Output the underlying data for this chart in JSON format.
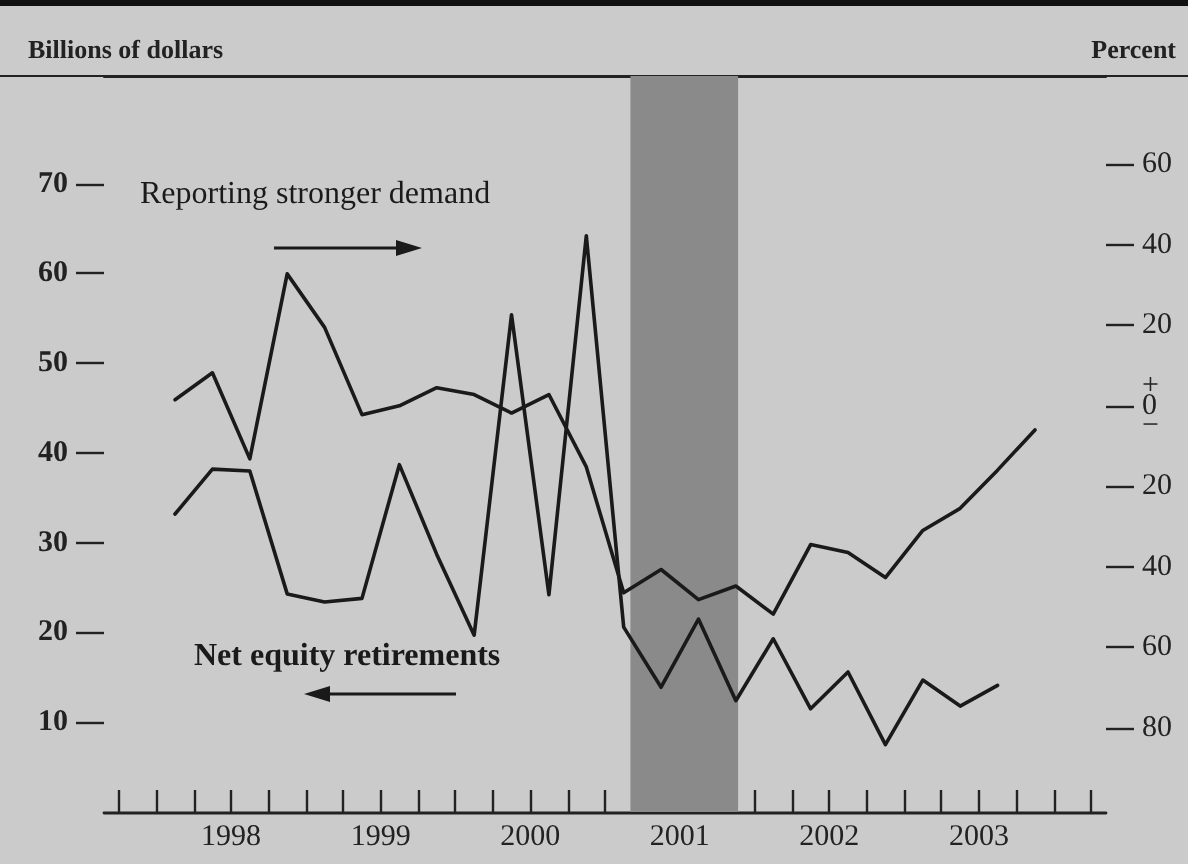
{
  "chart_data": {
    "type": "line",
    "ylabel": "Billions of dollars",
    "y2label": "Percent",
    "annotations": [
      "Net equity retirements",
      "Reporting stronger demand"
    ],
    "x": [
      1998.125,
      1998.375,
      1998.625,
      1998.875,
      1999.125,
      1999.375,
      1999.625,
      1999.875,
      2000.125,
      2000.375,
      2000.625,
      2000.875,
      2001.125,
      2001.375,
      2001.625,
      2001.875,
      2002.125,
      2002.375,
      2002.625,
      2002.875,
      2003.125,
      2003.375,
      2003.625,
      2003.875
    ],
    "series": [
      {
        "color": "#1a1a1a",
        "values": [
          33.2,
          38.2,
          38.0,
          24.3,
          23.4,
          23.8,
          38.7,
          28.7,
          19.7,
          55.4,
          24.2,
          64.2,
          20.6,
          13.9,
          21.5,
          12.4,
          19.3,
          11.5,
          15.6,
          7.5,
          14.7,
          11.8,
          14.1,
          null
        ]
      },
      {
        "color": "#1a1a1a",
        "axis": "y2",
        "values": [
          1.5,
          8.2,
          -13.2,
          32.8,
          19.5,
          -2.2,
          0,
          4.5,
          2.8,
          -1.8,
          2.8,
          -15.2,
          -46.5,
          -40.7,
          -48.2,
          -44.8,
          -51.8,
          -34.5,
          -36.5,
          -42.7,
          -31,
          -25.5,
          -16,
          -6
        ]
      }
    ],
    "xlim": [
      1997.65,
      2004.35
    ],
    "xticks": [
      {
        "value": 1997.75,
        "label": null
      },
      {
        "value": 1998,
        "label": null
      },
      {
        "value": 1998.25,
        "label": null
      },
      {
        "value": 1998.5,
        "label": "1998"
      },
      {
        "value": 1998.75,
        "label": null
      },
      {
        "value": 1999,
        "label": null
      },
      {
        "value": 1999.25,
        "label": null
      },
      {
        "value": 1999.5,
        "label": "1999"
      },
      {
        "value": 1999.75,
        "label": null
      },
      {
        "value": 2000,
        "label": null
      },
      {
        "value": 2000.25,
        "label": null
      },
      {
        "value": 2000.5,
        "label": "2000"
      },
      {
        "value": 2000.75,
        "label": null
      },
      {
        "value": 2001,
        "label": null
      },
      {
        "value": 2001.25,
        "label": null
      },
      {
        "value": 2001.5,
        "label": "2001"
      },
      {
        "value": 2001.75,
        "label": null
      },
      {
        "value": 2002,
        "label": null
      },
      {
        "value": 2002.25,
        "label": null
      },
      {
        "value": 2002.5,
        "label": "2002"
      },
      {
        "value": 2002.75,
        "label": null
      },
      {
        "value": 2003,
        "label": null
      },
      {
        "value": 2003.25,
        "label": null
      },
      {
        "value": 2003.5,
        "label": "2003"
      },
      {
        "value": 2003.75,
        "label": null
      },
      {
        "value": 2004,
        "label": null
      },
      {
        "value": 2004.25,
        "label": null
      }
    ],
    "ylim": [
      0,
      82
    ],
    "yticks": [
      10,
      20,
      30,
      40,
      50,
      60,
      70
    ],
    "y2lim": [
      -101,
      82
    ],
    "y2ticks": [
      {
        "value": 60,
        "label": "60"
      },
      {
        "value": 40,
        "label": "40"
      },
      {
        "value": 20,
        "label": "20"
      },
      {
        "value": 0,
        "label": "+\n0\n−"
      },
      {
        "value": -20,
        "label": "20"
      },
      {
        "value": -40,
        "label": "40"
      },
      {
        "value": -60,
        "label": "60"
      },
      {
        "value": -80,
        "label": "80"
      }
    ],
    "bands": [
      {
        "axis": "x",
        "from": 2001.17,
        "to": 2001.89,
        "color": "#8a8a8a"
      }
    ],
    "grid": false,
    "marker": "none",
    "line_style": "solid"
  }
}
